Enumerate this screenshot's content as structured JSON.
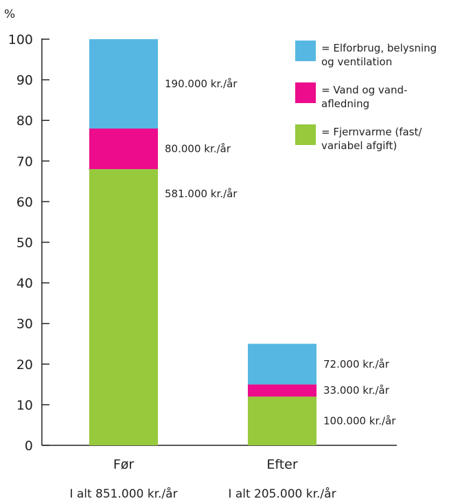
{
  "chart_data": {
    "type": "bar",
    "stacked": true,
    "ylabel": "%",
    "ylim": [
      0,
      100
    ],
    "y_ticks": [
      0,
      10,
      20,
      30,
      40,
      50,
      60,
      70,
      80,
      90,
      100
    ],
    "grid": false,
    "legend_position": "top-right",
    "categories": [
      "Før",
      "Efter"
    ],
    "totals": [
      "I alt 851.000 kr./år",
      "I alt 205.000 kr./år"
    ],
    "series": [
      {
        "name": "= Fjernvarme (fast/ variabel afgift)",
        "legend_lines": [
          "= Fjernvarme (fast/",
          "variabel afgift)"
        ],
        "color": "#97c93d",
        "values": [
          68,
          12
        ],
        "labels": [
          "581.000 kr./år",
          "100.000 kr./år"
        ]
      },
      {
        "name": "= Vand og vand- afledning",
        "legend_lines": [
          "= Vand og vand-",
          "afledning"
        ],
        "color": "#ec0c8c",
        "values": [
          10,
          3
        ],
        "labels": [
          "80.000 kr./år",
          "33.000 kr./år"
        ]
      },
      {
        "name": "= Elforbrug, belysning og ventilation",
        "legend_lines": [
          "= Elforbrug, belysning",
          "og ventilation"
        ],
        "color": "#56b8e2",
        "values": [
          22,
          10
        ],
        "labels": [
          "190.000 kr./år",
          "72.000 kr./år"
        ]
      }
    ]
  }
}
